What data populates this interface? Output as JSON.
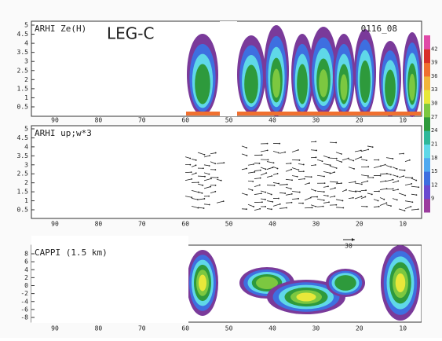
{
  "panels": [
    {
      "title": "ARHI Ze(H)",
      "label": "LEG-C",
      "time": "0116_08",
      "yticks": [
        "5",
        "4.5",
        "4",
        "3.5",
        "3",
        "2.5",
        "2",
        "1.5",
        "1",
        "0.5"
      ],
      "xticks": [
        "90",
        "80",
        "70",
        "60",
        "50",
        "40",
        "30",
        "20",
        "10"
      ]
    },
    {
      "title": "ARHI up;w*3",
      "yticks": [
        "5",
        "4.5",
        "4",
        "3.5",
        "3",
        "2.5",
        "2",
        "1.5",
        "1",
        "0.5"
      ],
      "xticks": [
        "90",
        "80",
        "70",
        "60",
        "50",
        "40",
        "30",
        "20",
        "10"
      ]
    },
    {
      "title": "CAPPI (1.5 km)",
      "vector_scale": "30",
      "yticks": [
        "8",
        "6",
        "4",
        "2",
        "0",
        "-2",
        "-4",
        "-6",
        "-8"
      ],
      "xticks": [
        "90",
        "80",
        "70",
        "60",
        "50",
        "40",
        "30",
        "20",
        "10"
      ]
    }
  ],
  "colorbar": {
    "labels": [
      "42",
      "39",
      "36",
      "33",
      "30",
      "27",
      "24",
      "21",
      "18",
      "15",
      "12",
      "9"
    ]
  }
}
